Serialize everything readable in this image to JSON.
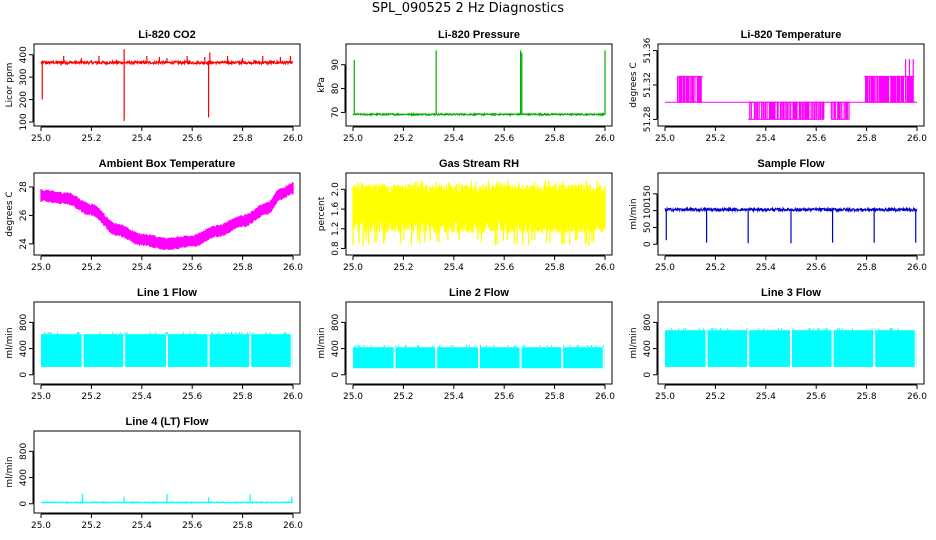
{
  "figure_title": "SPL_090525  2 Hz Diagnostics",
  "chart_data": [
    {
      "id": "co2",
      "type": "line",
      "title": "Li-820 CO2",
      "ylabel": "Licor ppm",
      "color": "#ff0000",
      "xlim": [
        25.0,
        26.0
      ],
      "ylim": [
        100,
        430
      ],
      "xticks": [
        25.0,
        25.2,
        25.4,
        25.6,
        25.8,
        26.0
      ],
      "xticklabels": [
        "25.0",
        "25.2",
        "25.4",
        "25.6",
        "25.8",
        "26.0"
      ],
      "yticks": [
        100,
        200,
        300,
        400
      ],
      "yticklabels": [
        "100",
        "200",
        "300",
        "400"
      ],
      "series": [
        {
          "name": "CO2",
          "pattern": "baseline",
          "base": 365,
          "noise": 6,
          "spikes": [
            {
              "x": 25.005,
              "y": 200
            },
            {
              "x": 25.09,
              "y": 395
            },
            {
              "x": 25.16,
              "y": 385
            },
            {
              "x": 25.23,
              "y": 395
            },
            {
              "x": 25.33,
              "y": 425
            },
            {
              "x": 25.33,
              "y": 105
            },
            {
              "x": 25.42,
              "y": 395
            },
            {
              "x": 25.47,
              "y": 390
            },
            {
              "x": 25.5,
              "y": 385
            },
            {
              "x": 25.58,
              "y": 395
            },
            {
              "x": 25.65,
              "y": 390
            },
            {
              "x": 25.665,
              "y": 120
            },
            {
              "x": 25.67,
              "y": 410
            },
            {
              "x": 25.74,
              "y": 395
            },
            {
              "x": 25.8,
              "y": 385
            },
            {
              "x": 25.88,
              "y": 395
            },
            {
              "x": 25.95,
              "y": 390
            },
            {
              "x": 25.99,
              "y": 395
            }
          ]
        }
      ]
    },
    {
      "id": "pressure",
      "type": "line",
      "title": "Li-820 Pressure",
      "ylabel": "kPa",
      "color": "#00aa00",
      "xlim": [
        25.0,
        26.0
      ],
      "ylim": [
        66,
        97
      ],
      "xticks": [
        25.0,
        25.2,
        25.4,
        25.6,
        25.8,
        26.0
      ],
      "xticklabels": [
        "25.0",
        "25.2",
        "25.4",
        "25.6",
        "25.8",
        "26.0"
      ],
      "yticks": [
        70,
        80,
        90
      ],
      "yticklabels": [
        "70",
        "80",
        "90"
      ],
      "series": [
        {
          "name": "Pressure",
          "pattern": "baseline",
          "base": 69.2,
          "noise": 0.3,
          "spikes": [
            {
              "x": 25.005,
              "y": 92
            },
            {
              "x": 25.33,
              "y": 96
            },
            {
              "x": 25.665,
              "y": 96
            },
            {
              "x": 25.67,
              "y": 95
            },
            {
              "x": 26.0,
              "y": 96
            }
          ]
        }
      ]
    },
    {
      "id": "licor_temp",
      "type": "line",
      "title": "Li-820 Temperature",
      "ylabel": "degrees C",
      "color": "#ff00ff",
      "xlim": [
        25.0,
        26.0
      ],
      "ylim": [
        51.277,
        51.363
      ],
      "xticks": [
        25.0,
        25.2,
        25.4,
        25.6,
        25.8,
        26.0
      ],
      "xticklabels": [
        "25.0",
        "25.2",
        "25.4",
        "25.6",
        "25.8",
        "26.0"
      ],
      "yticks": [
        51.28,
        51.32,
        51.36
      ],
      "yticklabels": [
        "51.28",
        "51.32",
        "51.36"
      ],
      "series": [
        {
          "name": "Temperature",
          "pattern": "step",
          "base": 51.3,
          "bands": [
            {
              "x0": 25.05,
              "x1": 25.15,
              "hi": 51.33,
              "lo": 51.3
            },
            {
              "x0": 25.33,
              "x1": 25.63,
              "hi": 51.3,
              "lo": 51.28
            },
            {
              "x0": 25.66,
              "x1": 25.73,
              "hi": 51.3,
              "lo": 51.28
            },
            {
              "x0": 25.79,
              "x1": 25.99,
              "hi": 51.33,
              "lo": 51.3
            }
          ],
          "extra": [
            {
              "x": 25.955,
              "y": 51.35
            },
            {
              "x": 25.97,
              "y": 51.35
            },
            {
              "x": 25.985,
              "y": 51.35
            }
          ]
        }
      ]
    },
    {
      "id": "box_temp",
      "type": "line",
      "title": "Ambient Box Temperature",
      "ylabel": "degrees C",
      "color": "#ff00ff",
      "xlim": [
        25.0,
        26.0
      ],
      "ylim": [
        23.5,
        28.7
      ],
      "xticks": [
        25.0,
        25.2,
        25.4,
        25.6,
        25.8,
        26.0
      ],
      "xticklabels": [
        "25.0",
        "25.2",
        "25.4",
        "25.6",
        "25.8",
        "26.0"
      ],
      "yticks": [
        24,
        26,
        28
      ],
      "yticklabels": [
        "24",
        "26",
        "28"
      ],
      "series": [
        {
          "name": "Box Temp",
          "pattern": "curve",
          "band": 0.9,
          "points": [
            [
              25.0,
              27.4
            ],
            [
              25.1,
              27.2
            ],
            [
              25.2,
              26.4
            ],
            [
              25.3,
              25.0
            ],
            [
              25.4,
              24.3
            ],
            [
              25.5,
              24.0
            ],
            [
              25.6,
              24.2
            ],
            [
              25.7,
              24.9
            ],
            [
              25.8,
              25.6
            ],
            [
              25.9,
              26.5
            ],
            [
              25.95,
              27.5
            ],
            [
              26.0,
              27.9
            ]
          ]
        }
      ]
    },
    {
      "id": "rh",
      "type": "line",
      "title": "Gas Stream RH",
      "ylabel": "percent",
      "color": "#ffff00",
      "xlim": [
        25.0,
        26.0
      ],
      "ylim": [
        0.75,
        2.25
      ],
      "xticks": [
        25.0,
        25.2,
        25.4,
        25.6,
        25.8,
        26.0
      ],
      "xticklabels": [
        "25.0",
        "25.2",
        "25.4",
        "25.6",
        "25.8",
        "26.0"
      ],
      "yticks": [
        0.8,
        1.2,
        1.6,
        2.0
      ],
      "yticklabels": [
        "0.8",
        "1.2",
        "1.6",
        "2.0"
      ],
      "series": [
        {
          "name": "RH",
          "pattern": "band",
          "lo": 1.2,
          "hi": 2.0,
          "spike_lo": 0.85,
          "spike_hi": 2.2
        }
      ]
    },
    {
      "id": "sample_flow",
      "type": "line",
      "title": "Sample Flow",
      "ylabel": "ml/min",
      "color": "#0000cc",
      "xlim": [
        25.0,
        26.0
      ],
      "ylim": [
        -20,
        200
      ],
      "xticks": [
        25.0,
        25.2,
        25.4,
        25.6,
        25.8,
        26.0
      ],
      "xticklabels": [
        "25.0",
        "25.2",
        "25.4",
        "25.6",
        "25.8",
        "26.0"
      ],
      "yticks": [
        0,
        50,
        100,
        150
      ],
      "yticklabels": [
        "0",
        "50",
        "100",
        "150"
      ],
      "series": [
        {
          "name": "Sample",
          "pattern": "baseline",
          "base": 103,
          "noise": 4,
          "spikes": [
            {
              "x": 25.005,
              "y": 12
            },
            {
              "x": 25.165,
              "y": 5
            },
            {
              "x": 25.33,
              "y": 3
            },
            {
              "x": 25.5,
              "y": 3
            },
            {
              "x": 25.665,
              "y": 5
            },
            {
              "x": 25.83,
              "y": 5
            },
            {
              "x": 25.995,
              "y": 5
            }
          ]
        }
      ]
    },
    {
      "id": "line1",
      "type": "line",
      "title": "Line 1 Flow",
      "ylabel": "ml/min",
      "color": "#00ffff",
      "xlim": [
        25.0,
        26.0
      ],
      "ylim": [
        -80,
        1050
      ],
      "xticks": [
        25.0,
        25.2,
        25.4,
        25.6,
        25.8,
        26.0
      ],
      "xticklabels": [
        "25.0",
        "25.2",
        "25.4",
        "25.6",
        "25.8",
        "26.0"
      ],
      "yticks": [
        0,
        400,
        800
      ],
      "yticklabels": [
        "0",
        "400",
        "800"
      ],
      "series": [
        {
          "name": "Line 1",
          "pattern": "block",
          "lo": 120,
          "hi": 620,
          "gaps": [
            25.165,
            25.33,
            25.5,
            25.665,
            25.83,
            25.995
          ]
        }
      ]
    },
    {
      "id": "line2",
      "type": "line",
      "title": "Line 2 Flow",
      "ylabel": "ml/min",
      "color": "#00ffff",
      "xlim": [
        25.0,
        26.0
      ],
      "ylim": [
        -80,
        1050
      ],
      "xticks": [
        25.0,
        25.2,
        25.4,
        25.6,
        25.8,
        26.0
      ],
      "xticklabels": [
        "25.0",
        "25.2",
        "25.4",
        "25.6",
        "25.8",
        "26.0"
      ],
      "yticks": [
        0,
        400,
        800
      ],
      "yticklabels": [
        "0",
        "400",
        "800"
      ],
      "series": [
        {
          "name": "Line 2",
          "pattern": "block",
          "lo": 100,
          "hi": 420,
          "gaps": [
            25.165,
            25.33,
            25.5,
            25.665,
            25.83,
            25.995
          ]
        }
      ]
    },
    {
      "id": "line3",
      "type": "line",
      "title": "Line 3 Flow",
      "ylabel": "ml/min",
      "color": "#00ffff",
      "xlim": [
        25.0,
        26.0
      ],
      "ylim": [
        -80,
        1050
      ],
      "xticks": [
        25.0,
        25.2,
        25.4,
        25.6,
        25.8,
        26.0
      ],
      "xticklabels": [
        "25.0",
        "25.2",
        "25.4",
        "25.6",
        "25.8",
        "26.0"
      ],
      "yticks": [
        0,
        400,
        800
      ],
      "yticklabels": [
        "0",
        "400",
        "800"
      ],
      "series": [
        {
          "name": "Line 3",
          "pattern": "block",
          "lo": 120,
          "hi": 680,
          "gaps": [
            25.165,
            25.33,
            25.5,
            25.665,
            25.83,
            25.995
          ]
        }
      ]
    },
    {
      "id": "line4",
      "type": "line",
      "title": "Line 4 (LT) Flow",
      "ylabel": "ml/min",
      "color": "#00ffff",
      "xlim": [
        25.0,
        26.0
      ],
      "ylim": [
        -80,
        1050
      ],
      "xticks": [
        25.0,
        25.2,
        25.4,
        25.6,
        25.8,
        26.0
      ],
      "xticklabels": [
        "25.0",
        "25.2",
        "25.4",
        "25.6",
        "25.8",
        "26.0"
      ],
      "yticks": [
        0,
        400,
        800
      ],
      "yticklabels": [
        "0",
        "400",
        "800"
      ],
      "series": [
        {
          "name": "Line 4",
          "pattern": "baseline",
          "base": 20,
          "noise": 6,
          "spikes": [
            {
              "x": 25.165,
              "y": 150
            },
            {
              "x": 25.33,
              "y": 110
            },
            {
              "x": 25.5,
              "y": 150
            },
            {
              "x": 25.665,
              "y": 100
            },
            {
              "x": 25.83,
              "y": 150
            },
            {
              "x": 25.995,
              "y": 110
            }
          ]
        }
      ]
    }
  ]
}
